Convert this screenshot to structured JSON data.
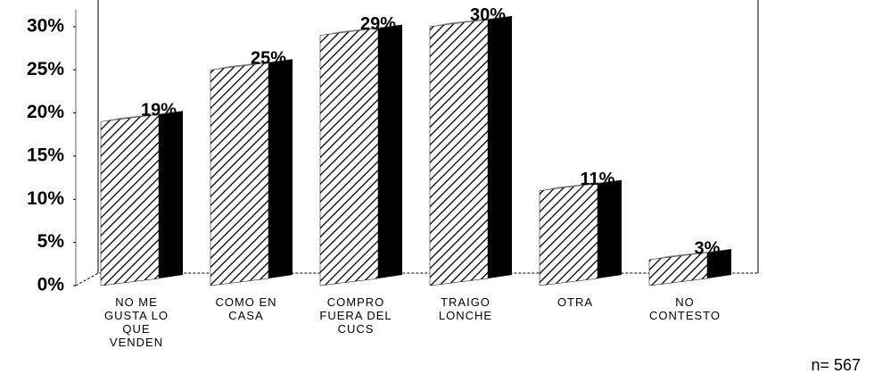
{
  "chart_data": {
    "type": "bar3d",
    "categories": [
      "NO ME GUSTA LO QUE VENDEN",
      "COMO EN CASA",
      "COMPRO FUERA DEL CUCS",
      "TRAIGO LONCHE",
      "OTRA",
      "NO CONTESTO"
    ],
    "values": [
      19,
      25,
      29,
      30,
      11,
      3
    ],
    "value_labels": [
      "19%",
      "25%",
      "29%",
      "30%",
      "11%",
      "3%"
    ],
    "color": "#000000",
    "ylim": [
      0,
      32
    ],
    "yticks": [
      {
        "value": 0,
        "label": "0%"
      },
      {
        "value": 5,
        "label": "5%"
      },
      {
        "value": 10,
        "label": "10%"
      },
      {
        "value": 15,
        "label": "15%"
      },
      {
        "value": 20,
        "label": "20%"
      },
      {
        "value": 25,
        "label": "25%"
      },
      {
        "value": 30,
        "label": "30%"
      }
    ],
    "note": "n= 567"
  }
}
